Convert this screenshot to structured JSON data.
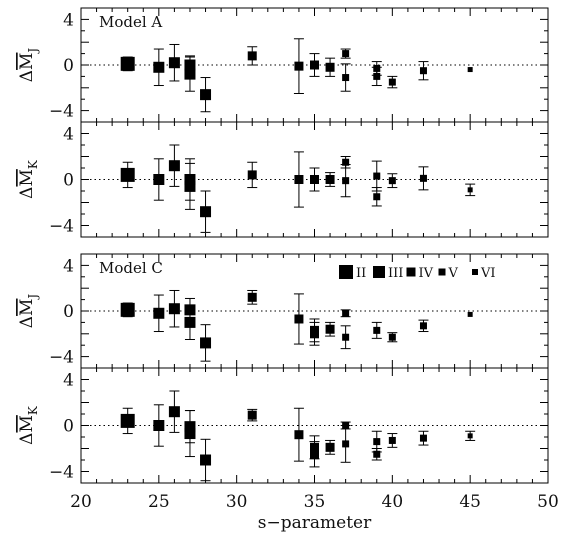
{
  "chart_data": {
    "type": "scatter",
    "xlabel": "s−parameter",
    "xlim": [
      20,
      50
    ],
    "x_ticks": [
      20,
      25,
      30,
      35,
      40,
      45,
      50
    ],
    "legend": {
      "placement": "top-right of third panel",
      "entries": [
        "II",
        "III",
        "IV",
        "V",
        "VI"
      ]
    },
    "panels": [
      {
        "group": "Model A",
        "label": "Model A",
        "ylabel_main": "ΔM",
        "ylabel_sub": "J",
        "ylim": [
          -5,
          5
        ],
        "y_ticks": [
          -4,
          0,
          4
        ],
        "points": [
          {
            "x": 23,
            "y": 0.1,
            "err": 0.6,
            "cls": "II"
          },
          {
            "x": 25,
            "y": -0.2,
            "err": 1.6,
            "cls": "III"
          },
          {
            "x": 26,
            "y": 0.2,
            "err": 1.6,
            "cls": "III"
          },
          {
            "x": 27,
            "y": 0.0,
            "err": 0.8,
            "cls": "III"
          },
          {
            "x": 27,
            "y": -0.8,
            "err": 1.5,
            "cls": "III"
          },
          {
            "x": 28,
            "y": -2.6,
            "err": 1.5,
            "cls": "III"
          },
          {
            "x": 31,
            "y": 0.8,
            "err": 0.8,
            "cls": "IV"
          },
          {
            "x": 34,
            "y": -0.1,
            "err": 2.4,
            "cls": "IV"
          },
          {
            "x": 35,
            "y": 0.0,
            "err": 1.0,
            "cls": "IV"
          },
          {
            "x": 36,
            "y": -0.2,
            "err": 0.8,
            "cls": "IV"
          },
          {
            "x": 37,
            "y": 1.0,
            "err": 0.4,
            "cls": "V"
          },
          {
            "x": 37,
            "y": -1.1,
            "err": 1.2,
            "cls": "V"
          },
          {
            "x": 39,
            "y": -0.3,
            "err": 0.6,
            "cls": "V"
          },
          {
            "x": 39,
            "y": -1.0,
            "err": 0.8,
            "cls": "V"
          },
          {
            "x": 40,
            "y": -1.5,
            "err": 0.5,
            "cls": "V"
          },
          {
            "x": 42,
            "y": -0.5,
            "err": 0.8,
            "cls": "V"
          },
          {
            "x": 45,
            "y": -0.4,
            "err": 0.0,
            "cls": "VI"
          }
        ]
      },
      {
        "group": "Model A",
        "label": "",
        "ylabel_main": "ΔM",
        "ylabel_sub": "K",
        "ylim": [
          -5,
          5
        ],
        "y_ticks": [
          -4,
          0,
          4
        ],
        "points": [
          {
            "x": 23,
            "y": 0.4,
            "err": 1.1,
            "cls": "II"
          },
          {
            "x": 25,
            "y": 0.0,
            "err": 1.8,
            "cls": "III"
          },
          {
            "x": 26,
            "y": 1.2,
            "err": 1.8,
            "cls": "III"
          },
          {
            "x": 27,
            "y": 0.0,
            "err": 1.8,
            "cls": "III"
          },
          {
            "x": 27,
            "y": -0.6,
            "err": 2.0,
            "cls": "III"
          },
          {
            "x": 28,
            "y": -2.8,
            "err": 1.8,
            "cls": "III"
          },
          {
            "x": 31,
            "y": 0.4,
            "err": 1.1,
            "cls": "IV"
          },
          {
            "x": 34,
            "y": 0.0,
            "err": 2.4,
            "cls": "IV"
          },
          {
            "x": 35,
            "y": 0.0,
            "err": 1.0,
            "cls": "IV"
          },
          {
            "x": 36,
            "y": 0.0,
            "err": 0.6,
            "cls": "IV"
          },
          {
            "x": 37,
            "y": 1.5,
            "err": 0.5,
            "cls": "V"
          },
          {
            "x": 37,
            "y": -0.1,
            "err": 1.4,
            "cls": "V"
          },
          {
            "x": 39,
            "y": 0.3,
            "err": 1.3,
            "cls": "V"
          },
          {
            "x": 39,
            "y": -1.5,
            "err": 0.8,
            "cls": "V"
          },
          {
            "x": 40,
            "y": -0.1,
            "err": 0.6,
            "cls": "V"
          },
          {
            "x": 42,
            "y": 0.1,
            "err": 1.0,
            "cls": "V"
          },
          {
            "x": 45,
            "y": -0.9,
            "err": 0.5,
            "cls": "VI"
          }
        ]
      },
      {
        "group": "Model C",
        "label": "Model C",
        "ylabel_main": "ΔM",
        "ylabel_sub": "J",
        "ylim": [
          -5,
          5
        ],
        "y_ticks": [
          -4,
          0,
          4
        ],
        "points": [
          {
            "x": 23,
            "y": 0.1,
            "err": 0.6,
            "cls": "II"
          },
          {
            "x": 25,
            "y": -0.2,
            "err": 1.6,
            "cls": "III"
          },
          {
            "x": 26,
            "y": 0.2,
            "err": 1.6,
            "cls": "III"
          },
          {
            "x": 27,
            "y": 0.1,
            "err": 1.0,
            "cls": "III"
          },
          {
            "x": 27,
            "y": -1.0,
            "err": 1.5,
            "cls": "III"
          },
          {
            "x": 28,
            "y": -2.8,
            "err": 1.6,
            "cls": "III"
          },
          {
            "x": 31,
            "y": 1.2,
            "err": 0.6,
            "cls": "IV"
          },
          {
            "x": 34,
            "y": -0.7,
            "err": 2.2,
            "cls": "IV"
          },
          {
            "x": 35,
            "y": -1.7,
            "err": 1.0,
            "cls": "IV"
          },
          {
            "x": 35,
            "y": -2.0,
            "err": 1.0,
            "cls": "IV"
          },
          {
            "x": 36,
            "y": -1.6,
            "err": 0.6,
            "cls": "IV"
          },
          {
            "x": 37,
            "y": -0.2,
            "err": 0.3,
            "cls": "V"
          },
          {
            "x": 37,
            "y": -2.3,
            "err": 1.0,
            "cls": "V"
          },
          {
            "x": 39,
            "y": -1.7,
            "err": 0.7,
            "cls": "V"
          },
          {
            "x": 40,
            "y": -2.3,
            "err": 0.4,
            "cls": "V"
          },
          {
            "x": 42,
            "y": -1.3,
            "err": 0.5,
            "cls": "V"
          },
          {
            "x": 45,
            "y": -0.3,
            "err": 0.0,
            "cls": "VI"
          }
        ]
      },
      {
        "group": "Model C",
        "label": "",
        "ylabel_main": "ΔM",
        "ylabel_sub": "K",
        "ylim": [
          -5,
          5
        ],
        "y_ticks": [
          -4,
          0,
          4
        ],
        "points": [
          {
            "x": 23,
            "y": 0.4,
            "err": 1.1,
            "cls": "II"
          },
          {
            "x": 25,
            "y": 0.0,
            "err": 1.8,
            "cls": "III"
          },
          {
            "x": 26,
            "y": 1.2,
            "err": 1.8,
            "cls": "III"
          },
          {
            "x": 27,
            "y": -0.1,
            "err": 1.4,
            "cls": "III"
          },
          {
            "x": 27,
            "y": -0.7,
            "err": 2.0,
            "cls": "III"
          },
          {
            "x": 28,
            "y": -3.0,
            "err": 1.8,
            "cls": "III"
          },
          {
            "x": 31,
            "y": 0.9,
            "err": 0.5,
            "cls": "IV"
          },
          {
            "x": 34,
            "y": -0.8,
            "err": 2.3,
            "cls": "IV"
          },
          {
            "x": 35,
            "y": -1.9,
            "err": 1.0,
            "cls": "IV"
          },
          {
            "x": 35,
            "y": -2.5,
            "err": 1.1,
            "cls": "IV"
          },
          {
            "x": 36,
            "y": -1.9,
            "err": 0.6,
            "cls": "IV"
          },
          {
            "x": 37,
            "y": 0.0,
            "err": 0.3,
            "cls": "V"
          },
          {
            "x": 37,
            "y": -1.6,
            "err": 1.6,
            "cls": "V"
          },
          {
            "x": 39,
            "y": -1.4,
            "err": 0.9,
            "cls": "V"
          },
          {
            "x": 39,
            "y": -2.5,
            "err": 0.5,
            "cls": "V"
          },
          {
            "x": 40,
            "y": -1.3,
            "err": 0.6,
            "cls": "V"
          },
          {
            "x": 42,
            "y": -1.1,
            "err": 0.6,
            "cls": "V"
          },
          {
            "x": 45,
            "y": -0.9,
            "err": 0.4,
            "cls": "VI"
          }
        ]
      }
    ]
  }
}
